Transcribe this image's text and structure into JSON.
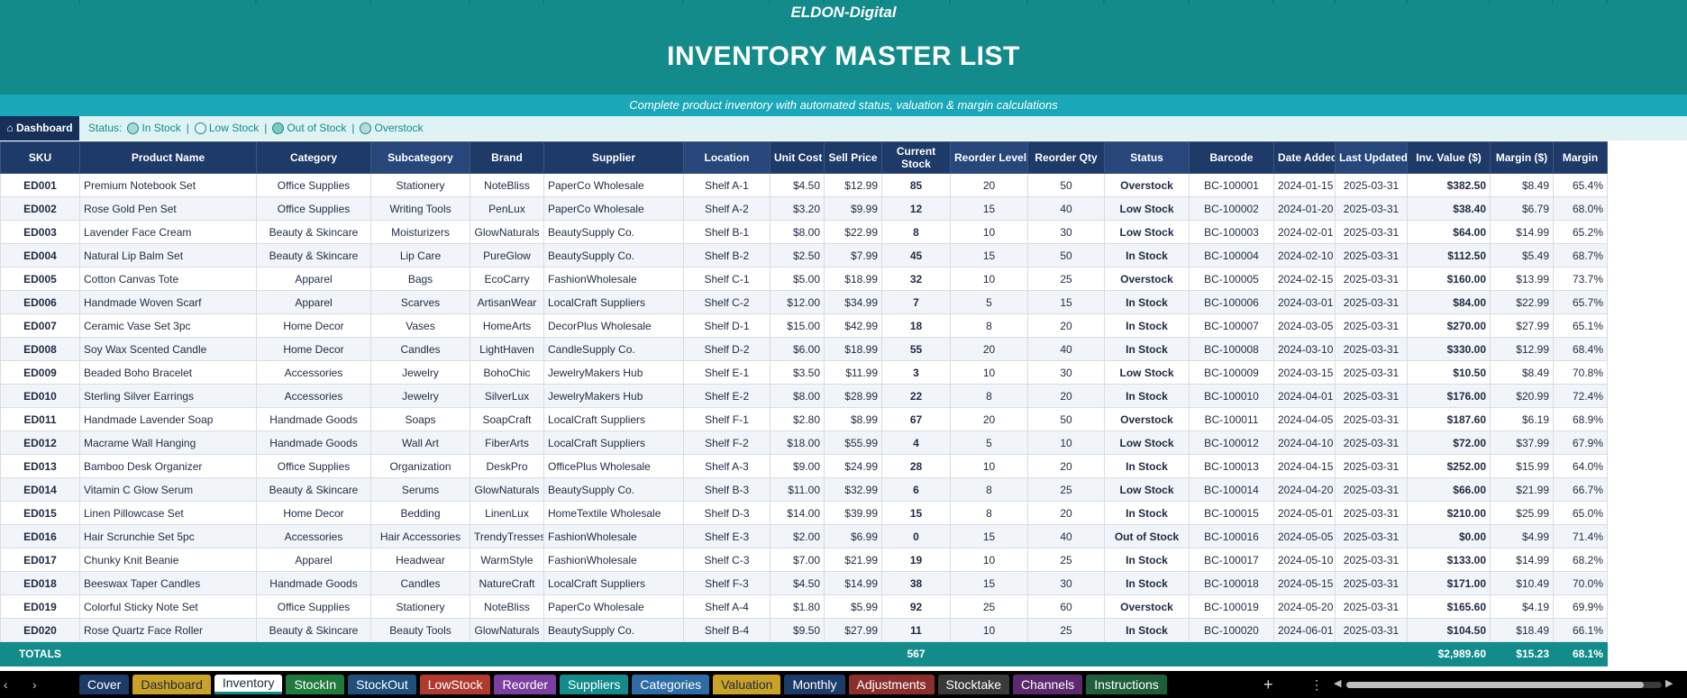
{
  "header": {
    "brand": "ELDON-Digital",
    "title": "INVENTORY MASTER LIST",
    "subtitle": "Complete product inventory with automated status, valuation & margin calculations"
  },
  "statusbar": {
    "dashboard_label": "⌂ Dashboard",
    "status_label": "Status:",
    "legend": [
      {
        "label": "In Stock",
        "color": "#a7d9d6"
      },
      {
        "label": "Low Stock",
        "color": "#e6f4f4"
      },
      {
        "label": "Out of Stock",
        "color": "#7fc6c3"
      },
      {
        "label": "Overstock",
        "color": "#b7dcdb"
      }
    ]
  },
  "columns": [
    "SKU",
    "Product Name",
    "Category",
    "Subcategory",
    "Brand",
    "Supplier",
    "Location",
    "Unit Cost",
    "Sell Price",
    "Current Stock",
    "Reorder Level",
    "Reorder Qty",
    "Status",
    "Barcode",
    "Date Added",
    "Last Updated",
    "Inv. Value ($)",
    "Margin ($)",
    "Margin"
  ],
  "rows": [
    [
      "ED001",
      "Premium Notebook Set",
      "Office Supplies",
      "Stationery",
      "NoteBliss",
      "PaperCo Wholesale",
      "Shelf A-1",
      "$4.50",
      "$12.99",
      "85",
      "20",
      "50",
      "Overstock",
      "BC-100001",
      "2024-01-15",
      "2025-03-31",
      "$382.50",
      "$8.49",
      "65.4%"
    ],
    [
      "ED002",
      "Rose Gold Pen Set",
      "Office Supplies",
      "Writing Tools",
      "PenLux",
      "PaperCo Wholesale",
      "Shelf A-2",
      "$3.20",
      "$9.99",
      "12",
      "15",
      "40",
      "Low Stock",
      "BC-100002",
      "2024-01-20",
      "2025-03-31",
      "$38.40",
      "$6.79",
      "68.0%"
    ],
    [
      "ED003",
      "Lavender Face Cream",
      "Beauty & Skincare",
      "Moisturizers",
      "GlowNaturals",
      "BeautySupply Co.",
      "Shelf B-1",
      "$8.00",
      "$22.99",
      "8",
      "10",
      "30",
      "Low Stock",
      "BC-100003",
      "2024-02-01",
      "2025-03-31",
      "$64.00",
      "$14.99",
      "65.2%"
    ],
    [
      "ED004",
      "Natural Lip Balm Set",
      "Beauty & Skincare",
      "Lip Care",
      "PureGlow",
      "BeautySupply Co.",
      "Shelf B-2",
      "$2.50",
      "$7.99",
      "45",
      "15",
      "50",
      "In Stock",
      "BC-100004",
      "2024-02-10",
      "2025-03-31",
      "$112.50",
      "$5.49",
      "68.7%"
    ],
    [
      "ED005",
      "Cotton Canvas Tote",
      "Apparel",
      "Bags",
      "EcoCarry",
      "FashionWholesale",
      "Shelf C-1",
      "$5.00",
      "$18.99",
      "32",
      "10",
      "25",
      "Overstock",
      "BC-100005",
      "2024-02-15",
      "2025-03-31",
      "$160.00",
      "$13.99",
      "73.7%"
    ],
    [
      "ED006",
      "Handmade Woven Scarf",
      "Apparel",
      "Scarves",
      "ArtisanWear",
      "LocalCraft Suppliers",
      "Shelf C-2",
      "$12.00",
      "$34.99",
      "7",
      "5",
      "15",
      "In Stock",
      "BC-100006",
      "2024-03-01",
      "2025-03-31",
      "$84.00",
      "$22.99",
      "65.7%"
    ],
    [
      "ED007",
      "Ceramic Vase Set 3pc",
      "Home Decor",
      "Vases",
      "HomeArts",
      "DecorPlus Wholesale",
      "Shelf D-1",
      "$15.00",
      "$42.99",
      "18",
      "8",
      "20",
      "In Stock",
      "BC-100007",
      "2024-03-05",
      "2025-03-31",
      "$270.00",
      "$27.99",
      "65.1%"
    ],
    [
      "ED008",
      "Soy Wax Scented Candle",
      "Home Decor",
      "Candles",
      "LightHaven",
      "CandleSupply Co.",
      "Shelf D-2",
      "$6.00",
      "$18.99",
      "55",
      "20",
      "40",
      "In Stock",
      "BC-100008",
      "2024-03-10",
      "2025-03-31",
      "$330.00",
      "$12.99",
      "68.4%"
    ],
    [
      "ED009",
      "Beaded Boho Bracelet",
      "Accessories",
      "Jewelry",
      "BohoChic",
      "JewelryMakers Hub",
      "Shelf E-1",
      "$3.50",
      "$11.99",
      "3",
      "10",
      "30",
      "Low Stock",
      "BC-100009",
      "2024-03-15",
      "2025-03-31",
      "$10.50",
      "$8.49",
      "70.8%"
    ],
    [
      "ED010",
      "Sterling Silver Earrings",
      "Accessories",
      "Jewelry",
      "SilverLux",
      "JewelryMakers Hub",
      "Shelf E-2",
      "$8.00",
      "$28.99",
      "22",
      "8",
      "20",
      "In Stock",
      "BC-100010",
      "2024-04-01",
      "2025-03-31",
      "$176.00",
      "$20.99",
      "72.4%"
    ],
    [
      "ED011",
      "Handmade Lavender Soap",
      "Handmade Goods",
      "Soaps",
      "SoapCraft",
      "LocalCraft Suppliers",
      "Shelf F-1",
      "$2.80",
      "$8.99",
      "67",
      "20",
      "50",
      "Overstock",
      "BC-100011",
      "2024-04-05",
      "2025-03-31",
      "$187.60",
      "$6.19",
      "68.9%"
    ],
    [
      "ED012",
      "Macrame Wall Hanging",
      "Handmade Goods",
      "Wall Art",
      "FiberArts",
      "LocalCraft Suppliers",
      "Shelf F-2",
      "$18.00",
      "$55.99",
      "4",
      "5",
      "10",
      "Low Stock",
      "BC-100012",
      "2024-04-10",
      "2025-03-31",
      "$72.00",
      "$37.99",
      "67.9%"
    ],
    [
      "ED013",
      "Bamboo Desk Organizer",
      "Office Supplies",
      "Organization",
      "DeskPro",
      "OfficePlus Wholesale",
      "Shelf A-3",
      "$9.00",
      "$24.99",
      "28",
      "10",
      "20",
      "In Stock",
      "BC-100013",
      "2024-04-15",
      "2025-03-31",
      "$252.00",
      "$15.99",
      "64.0%"
    ],
    [
      "ED014",
      "Vitamin C Glow Serum",
      "Beauty & Skincare",
      "Serums",
      "GlowNaturals",
      "BeautySupply Co.",
      "Shelf B-3",
      "$11.00",
      "$32.99",
      "6",
      "8",
      "25",
      "Low Stock",
      "BC-100014",
      "2024-04-20",
      "2025-03-31",
      "$66.00",
      "$21.99",
      "66.7%"
    ],
    [
      "ED015",
      "Linen Pillowcase Set",
      "Home Decor",
      "Bedding",
      "LinenLux",
      "HomeTextile Wholesale",
      "Shelf D-3",
      "$14.00",
      "$39.99",
      "15",
      "8",
      "20",
      "In Stock",
      "BC-100015",
      "2024-05-01",
      "2025-03-31",
      "$210.00",
      "$25.99",
      "65.0%"
    ],
    [
      "ED016",
      "Hair Scrunchie Set 5pc",
      "Accessories",
      "Hair Accessories",
      "TrendyTresses",
      "FashionWholesale",
      "Shelf E-3",
      "$2.00",
      "$6.99",
      "0",
      "15",
      "40",
      "Out of Stock",
      "BC-100016",
      "2024-05-05",
      "2025-03-31",
      "$0.00",
      "$4.99",
      "71.4%"
    ],
    [
      "ED017",
      "Chunky Knit Beanie",
      "Apparel",
      "Headwear",
      "WarmStyle",
      "FashionWholesale",
      "Shelf C-3",
      "$7.00",
      "$21.99",
      "19",
      "10",
      "25",
      "In Stock",
      "BC-100017",
      "2024-05-10",
      "2025-03-31",
      "$133.00",
      "$14.99",
      "68.2%"
    ],
    [
      "ED018",
      "Beeswax Taper Candles",
      "Handmade Goods",
      "Candles",
      "NatureCraft",
      "LocalCraft Suppliers",
      "Shelf F-3",
      "$4.50",
      "$14.99",
      "38",
      "15",
      "30",
      "In Stock",
      "BC-100018",
      "2024-05-15",
      "2025-03-31",
      "$171.00",
      "$10.49",
      "70.0%"
    ],
    [
      "ED019",
      "Colorful Sticky Note Set",
      "Office Supplies",
      "Stationery",
      "NoteBliss",
      "PaperCo Wholesale",
      "Shelf A-4",
      "$1.80",
      "$5.99",
      "92",
      "25",
      "60",
      "Overstock",
      "BC-100019",
      "2024-05-20",
      "2025-03-31",
      "$165.60",
      "$4.19",
      "69.9%"
    ],
    [
      "ED020",
      "Rose Quartz Face Roller",
      "Beauty & Skincare",
      "Beauty Tools",
      "GlowNaturals",
      "BeautySupply Co.",
      "Shelf B-4",
      "$9.50",
      "$27.99",
      "11",
      "10",
      "25",
      "In Stock",
      "BC-100020",
      "2024-06-01",
      "2025-03-31",
      "$104.50",
      "$18.49",
      "66.1%"
    ]
  ],
  "totals": {
    "label": "TOTALS",
    "current_stock": "567",
    "inv_value": "$2,989.60",
    "margin_value": "$15.23",
    "margin_pct": "68.1%"
  },
  "tabs": [
    {
      "label": "Cover",
      "color": "#1e3a68"
    },
    {
      "label": "Dashboard",
      "color": "#c9a227",
      "text": "#1f2a44"
    },
    {
      "label": "Inventory",
      "color": "#ffffff",
      "active": true
    },
    {
      "label": "StockIn",
      "color": "#1f7a3d"
    },
    {
      "label": "StockOut",
      "color": "#1f4f7a"
    },
    {
      "label": "LowStock",
      "color": "#b03a2e"
    },
    {
      "label": "Reorder",
      "color": "#7b3fa0"
    },
    {
      "label": "Suppliers",
      "color": "#138b8b"
    },
    {
      "label": "Categories",
      "color": "#2e6da4"
    },
    {
      "label": "Valuation",
      "color": "#c9a227",
      "text": "#1f2a44"
    },
    {
      "label": "Monthly",
      "color": "#1e3a68"
    },
    {
      "label": "Adjustments",
      "color": "#8b2e2e"
    },
    {
      "label": "Stocktake",
      "color": "#3a3a3a"
    },
    {
      "label": "Channels",
      "color": "#5b2a6e"
    },
    {
      "label": "Instructions",
      "color": "#1f5e3a"
    }
  ]
}
